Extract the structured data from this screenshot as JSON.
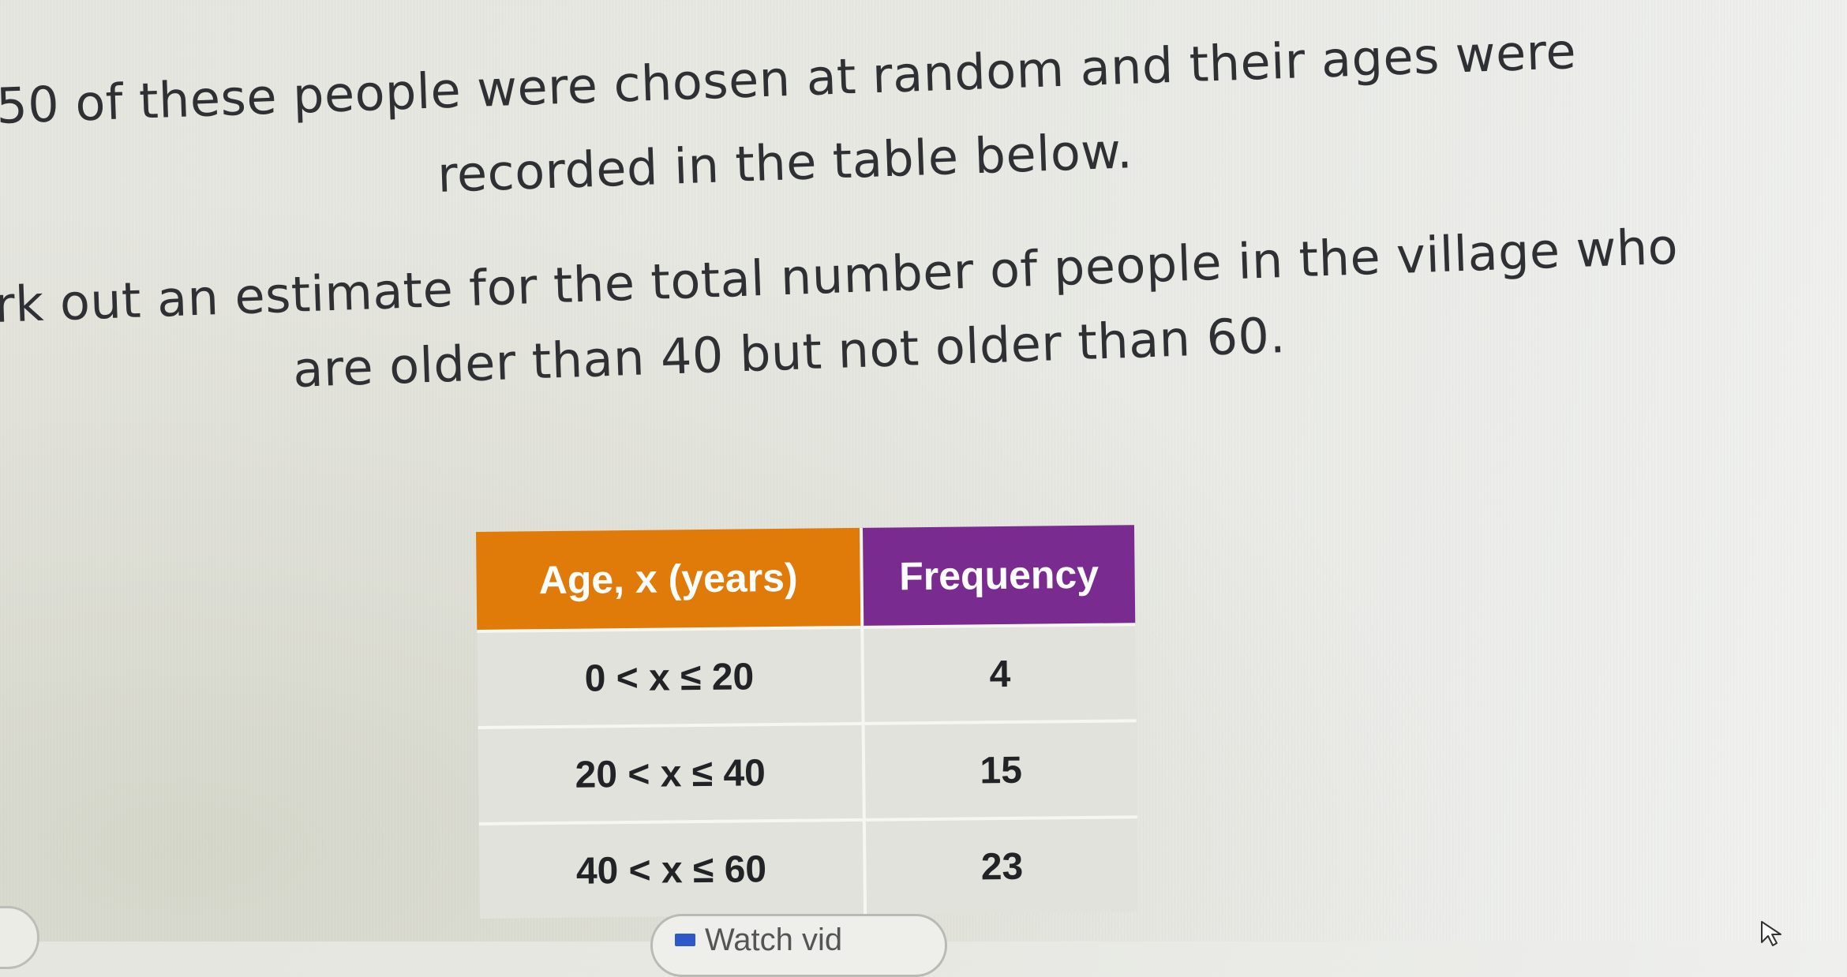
{
  "question": {
    "line1": "50 of these people were chosen at random and their ages were",
    "line2": "recorded in the table below.",
    "line3": "rk out an estimate for the total number of people in the village who",
    "line4": "are older than 40 but not older than 60."
  },
  "table": {
    "headers": [
      "Age, x (years)",
      "Frequency"
    ],
    "rows": [
      {
        "age": "0 < x ≤ 20",
        "frequency": "4"
      },
      {
        "age": "20 < x ≤ 40",
        "frequency": "15"
      },
      {
        "age": "40 < x ≤ 60",
        "frequency": "23"
      }
    ],
    "header_colors": {
      "age": "#e07b0a",
      "frequency": "#7a2b8f"
    }
  },
  "bottom_button": {
    "label": "Watch vid",
    "icon": "video-icon"
  },
  "cursor": {
    "icon": "cursor-icon"
  }
}
